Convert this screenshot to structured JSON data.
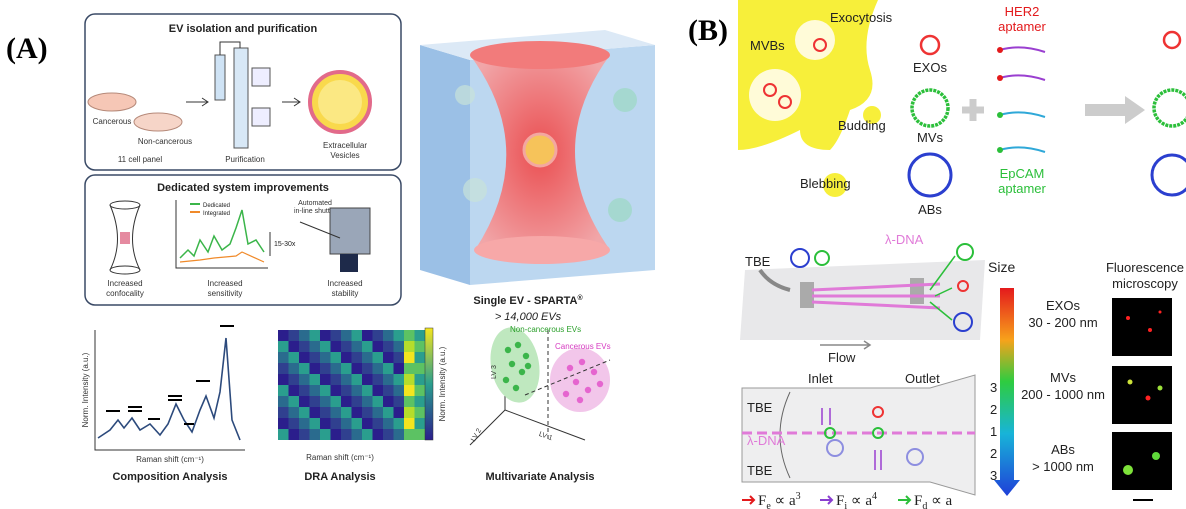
{
  "panel_a": {
    "label": "(A)",
    "isolation": {
      "title": "EV isolation and purification",
      "dishes": [
        "Cancerous",
        "Non-cancerous"
      ],
      "cell_panel": "11 cell panel",
      "purification": "Purification",
      "vesicles": [
        "Extracellular",
        "Vesicles"
      ]
    },
    "improvements": {
      "title": "Dedicated system improvements",
      "legend": [
        "Dedicated",
        "Integrated"
      ],
      "gain": "15-30x",
      "shutter": [
        "Automated",
        "in-line shutter"
      ],
      "captions": [
        [
          "Increased",
          "confocality"
        ],
        [
          "Increased",
          "sensitivity"
        ],
        [
          "Increased",
          "stability"
        ]
      ]
    },
    "sparta": {
      "title": "Single EV - SPARTA",
      "mark": "®",
      "count": "> 14,000 EVs"
    },
    "composition": {
      "y_label": "Norm. Intensity (a.u.)",
      "x_label": "Raman shift (cm⁻¹)",
      "title": "Composition Analysis"
    },
    "dra": {
      "x_label": "Raman shift (cm⁻¹)",
      "bar_label": "Norm. Intensity (a.u.)",
      "title": "DRA Analysis"
    },
    "multivariate": {
      "groups": [
        "Non-cancerous EVs",
        "Cancerous EVs"
      ],
      "axes": [
        "LV 3",
        "LV 2",
        "LV 1"
      ],
      "title": "Multivariate Analysis"
    }
  },
  "panel_b": {
    "label": "(B)",
    "origin": {
      "mvbs": "MVBs",
      "exocytosis": "Exocytosis",
      "budding": "Budding",
      "blebbing": "Blebbing"
    },
    "types": [
      "EXOs",
      "MVs",
      "ABs"
    ],
    "aptamers": {
      "her2": [
        "HER2",
        "aptamer"
      ],
      "epcam": [
        "EpCAM",
        "aptamer"
      ]
    },
    "chip": {
      "buffer": "TBE",
      "dna": "λ-DNA",
      "flow": "Flow"
    },
    "size": {
      "title": "Size",
      "classes": [
        {
          "name": "EXOs",
          "range": "30 - 200 nm"
        },
        {
          "name": "MVs",
          "range": "200 - 1000 nm"
        },
        {
          "name": "ABs",
          "range": "> 1000 nm"
        }
      ]
    },
    "microscopy": [
      "Fluorescence",
      "microscopy"
    ],
    "channel": {
      "inlet": "Inlet",
      "outlet": "Outlet",
      "top": "TBE",
      "dna": "λ-DNA",
      "bottom": "TBE",
      "lanes": [
        "3",
        "2",
        "1",
        "2",
        "3"
      ]
    },
    "forces": [
      {
        "f": "F",
        "sub": "e",
        "rel": " ∝ a",
        "sup": "3"
      },
      {
        "f": "F",
        "sub": "i",
        "rel": " ∝ a",
        "sup": "4"
      },
      {
        "f": "F",
        "sub": "d",
        "rel": " ∝ a",
        "sup": ""
      }
    ]
  }
}
